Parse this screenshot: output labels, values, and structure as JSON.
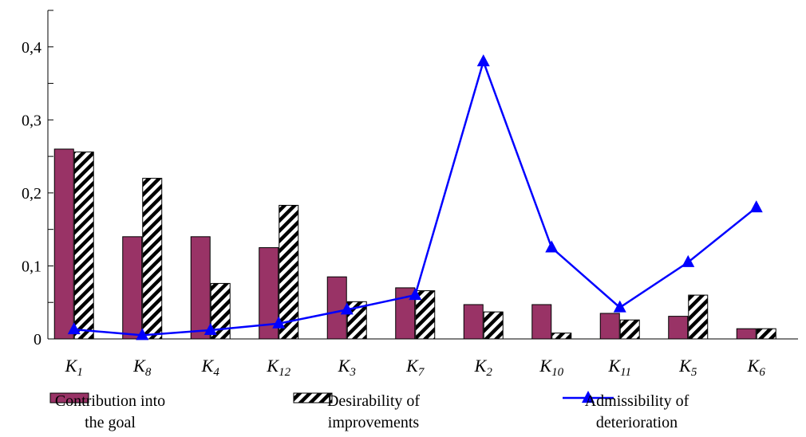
{
  "chart_data": {
    "type": "bar",
    "categories": [
      {
        "base": "K",
        "sub": "1"
      },
      {
        "base": "K",
        "sub": "8"
      },
      {
        "base": "K",
        "sub": "4"
      },
      {
        "base": "K",
        "sub": "12"
      },
      {
        "base": "K",
        "sub": "3"
      },
      {
        "base": "K",
        "sub": "7"
      },
      {
        "base": "K",
        "sub": "2"
      },
      {
        "base": "K",
        "sub": "10"
      },
      {
        "base": "K",
        "sub": "11"
      },
      {
        "base": "K",
        "sub": "5"
      },
      {
        "base": "K",
        "sub": "6"
      }
    ],
    "series": [
      {
        "name": "Contribution into the goal",
        "name_lines": [
          "Contribution into",
          "the goal"
        ],
        "kind": "bar",
        "color": "#993366",
        "values": [
          0.26,
          0.14,
          0.14,
          0.125,
          0.085,
          0.07,
          0.047,
          0.047,
          0.035,
          0.031,
          0.014
        ]
      },
      {
        "name": "Desirability of improvements",
        "name_lines": [
          "Desirability of",
          "improvements"
        ],
        "kind": "bar-hatched",
        "color": "#000000",
        "values": [
          0.256,
          0.22,
          0.076,
          0.183,
          0.051,
          0.066,
          0.037,
          0.008,
          0.026,
          0.06,
          0.014
        ]
      },
      {
        "name": "Admissibility of deterioration",
        "name_lines": [
          "Admissibility of",
          "deterioration"
        ],
        "kind": "line",
        "color": "#0000ff",
        "values": [
          0.013,
          0.005,
          0.012,
          0.021,
          0.04,
          0.06,
          0.38,
          0.125,
          0.043,
          0.105,
          0.18
        ]
      }
    ],
    "yticks": [
      {
        "value": 0,
        "label": "0"
      },
      {
        "value": 0.1,
        "label": "0,1"
      },
      {
        "value": 0.2,
        "label": "0,2"
      },
      {
        "value": 0.3,
        "label": "0,3"
      },
      {
        "value": 0.4,
        "label": "0,4"
      }
    ],
    "ylim": [
      0,
      0.45
    ],
    "title": "",
    "xlabel": "",
    "ylabel": "",
    "grid": false,
    "legend_position": "bottom"
  }
}
